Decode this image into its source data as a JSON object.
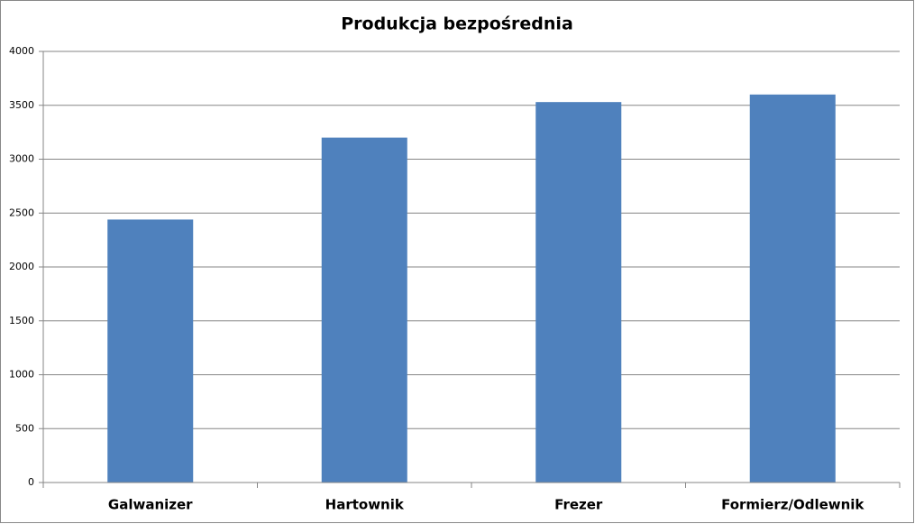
{
  "chart_data": {
    "type": "bar",
    "title": "Produkcja bezpośrednia",
    "categories": [
      "Galwanizer",
      "Hartownik",
      "Frezer",
      "Formierz/Odlewnik"
    ],
    "values": [
      2440,
      3200,
      3530,
      3600
    ],
    "color": "#4f81bd",
    "ylim": [
      0,
      4000
    ],
    "yticks": [
      0,
      500,
      1000,
      1500,
      2000,
      2500,
      3000,
      3500,
      4000
    ],
    "grid": true
  }
}
